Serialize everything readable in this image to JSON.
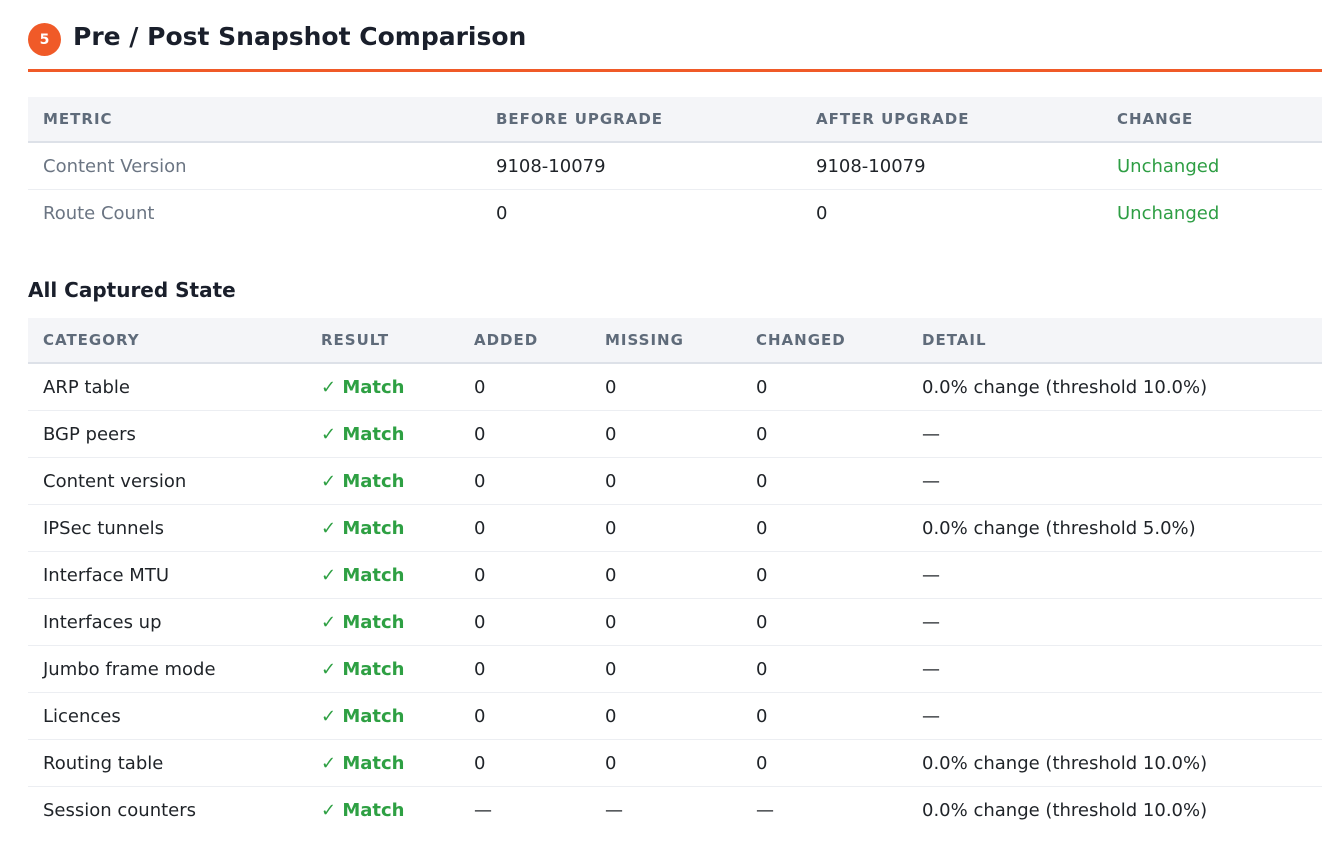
{
  "section": {
    "number": "5",
    "title": "Pre / Post Snapshot Comparison"
  },
  "summary_table": {
    "headers": [
      "METRIC",
      "BEFORE UPGRADE",
      "AFTER UPGRADE",
      "CHANGE"
    ],
    "rows": [
      [
        "Content Version",
        "9108-10079",
        "9108-10079",
        "Unchanged"
      ],
      [
        "Route Count",
        "0",
        "0",
        "Unchanged"
      ]
    ]
  },
  "state_heading": "All Captured State",
  "state_table": {
    "headers": [
      "CATEGORY",
      "RESULT",
      "ADDED",
      "MISSING",
      "CHANGED",
      "DETAIL"
    ],
    "rows": [
      [
        "ARP table",
        "✓ Match",
        "0",
        "0",
        "0",
        "0.0% change (threshold 10.0%)"
      ],
      [
        "BGP peers",
        "✓ Match",
        "0",
        "0",
        "0",
        "—"
      ],
      [
        "Content version",
        "✓ Match",
        "0",
        "0",
        "0",
        "—"
      ],
      [
        "IPSec tunnels",
        "✓ Match",
        "0",
        "0",
        "0",
        "0.0% change (threshold 5.0%)"
      ],
      [
        "Interface MTU",
        "✓ Match",
        "0",
        "0",
        "0",
        "—"
      ],
      [
        "Interfaces up",
        "✓ Match",
        "0",
        "0",
        "0",
        "—"
      ],
      [
        "Jumbo frame mode",
        "✓ Match",
        "0",
        "0",
        "0",
        "—"
      ],
      [
        "Licences",
        "✓ Match",
        "0",
        "0",
        "0",
        "—"
      ],
      [
        "Routing table",
        "✓ Match",
        "0",
        "0",
        "0",
        "0.0% change (threshold 10.0%)"
      ],
      [
        "Session counters",
        "✓ Match",
        "—",
        "—",
        "—",
        "0.0% change (threshold 10.0%)"
      ]
    ]
  }
}
